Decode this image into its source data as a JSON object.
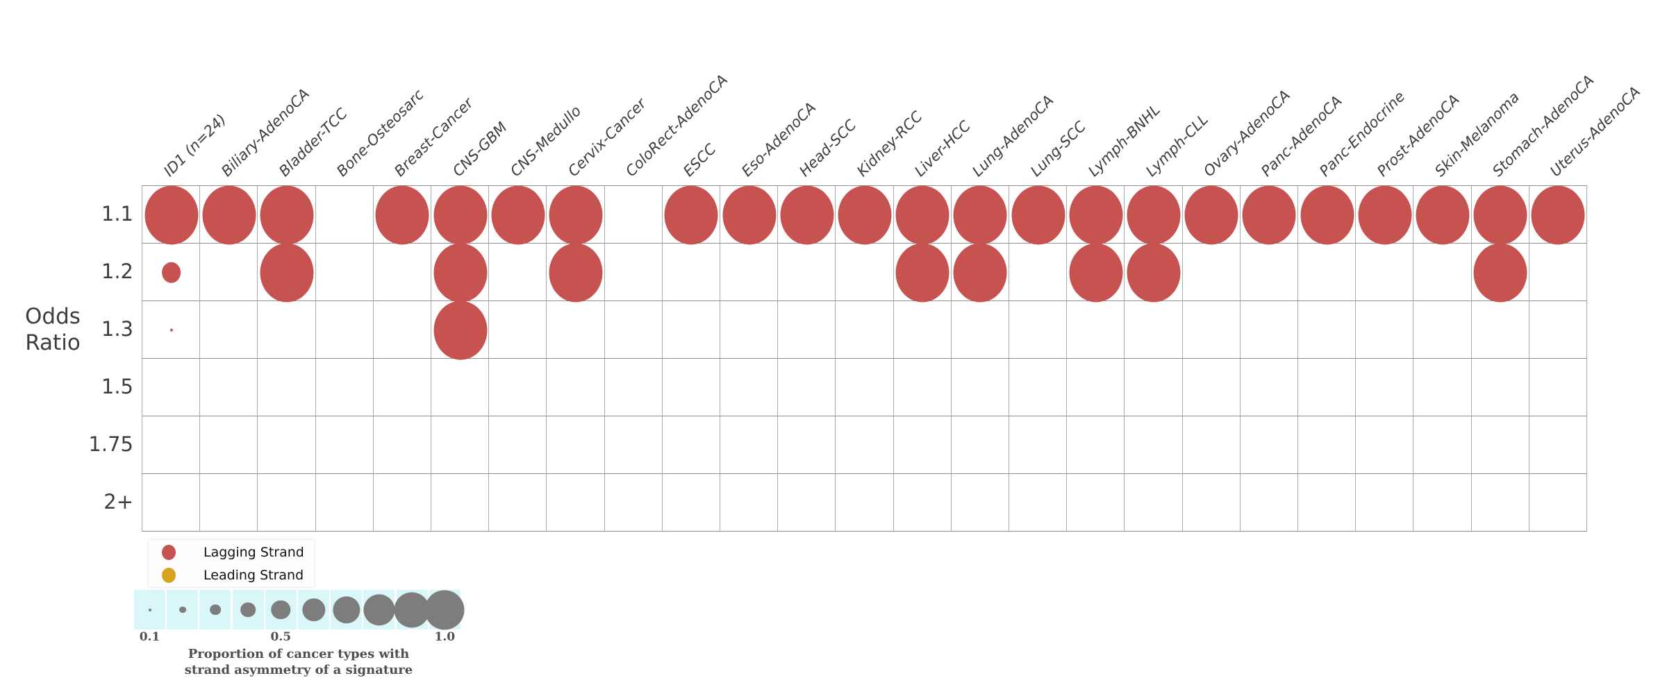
{
  "chart_data": {
    "type": "bubble",
    "title": "",
    "ylabel": "Odds\nRatio",
    "x_categories": [
      "ID1 (n=24)",
      "Biliary-AdenoCA",
      "Bladder-TCC",
      "Bone-Osteosarc",
      "Breast-Cancer",
      "CNS-GBM",
      "CNS-Medullo",
      "Cervix-Cancer",
      "ColoRect-AdenoCA",
      "ESCC",
      "Eso-AdenoCA",
      "Head-SCC",
      "Kidney-RCC",
      "Liver-HCC",
      "Lung-AdenoCA",
      "Lung-SCC",
      "Lymph-BNHL",
      "Lymph-CLL",
      "Ovary-AdenoCA",
      "Panc-AdenoCA",
      "Panc-Endocrine",
      "Prost-AdenoCA",
      "Skin-Melanoma",
      "Stomach-AdenoCA",
      "Uterus-AdenoCA"
    ],
    "y_categories": [
      "1.1",
      "1.2",
      "1.3",
      "1.5",
      "1.75",
      "2+"
    ],
    "grid": true,
    "series": [
      {
        "name": "Lagging Strand",
        "color": "#c75351",
        "points": [
          {
            "x": "ID1 (n=24)",
            "y": "1.1",
            "size": 1.0
          },
          {
            "x": "Biliary-AdenoCA",
            "y": "1.1",
            "size": 1.0
          },
          {
            "x": "Bladder-TCC",
            "y": "1.1",
            "size": 1.0
          },
          {
            "x": "Breast-Cancer",
            "y": "1.1",
            "size": 1.0
          },
          {
            "x": "CNS-GBM",
            "y": "1.1",
            "size": 1.0
          },
          {
            "x": "CNS-Medullo",
            "y": "1.1",
            "size": 1.0
          },
          {
            "x": "Cervix-Cancer",
            "y": "1.1",
            "size": 1.0
          },
          {
            "x": "ESCC",
            "y": "1.1",
            "size": 1.0
          },
          {
            "x": "Eso-AdenoCA",
            "y": "1.1",
            "size": 1.0
          },
          {
            "x": "Head-SCC",
            "y": "1.1",
            "size": 1.0
          },
          {
            "x": "Kidney-RCC",
            "y": "1.1",
            "size": 1.0
          },
          {
            "x": "Liver-HCC",
            "y": "1.1",
            "size": 1.0
          },
          {
            "x": "Lung-AdenoCA",
            "y": "1.1",
            "size": 1.0
          },
          {
            "x": "Lung-SCC",
            "y": "1.1",
            "size": 1.0
          },
          {
            "x": "Lymph-BNHL",
            "y": "1.1",
            "size": 1.0
          },
          {
            "x": "Lymph-CLL",
            "y": "1.1",
            "size": 1.0
          },
          {
            "x": "Ovary-AdenoCA",
            "y": "1.1",
            "size": 1.0
          },
          {
            "x": "Panc-AdenoCA",
            "y": "1.1",
            "size": 1.0
          },
          {
            "x": "Panc-Endocrine",
            "y": "1.1",
            "size": 1.0
          },
          {
            "x": "Prost-AdenoCA",
            "y": "1.1",
            "size": 1.0
          },
          {
            "x": "Skin-Melanoma",
            "y": "1.1",
            "size": 1.0
          },
          {
            "x": "Stomach-AdenoCA",
            "y": "1.1",
            "size": 1.0
          },
          {
            "x": "Uterus-AdenoCA",
            "y": "1.1",
            "size": 1.0
          },
          {
            "x": "ID1 (n=24)",
            "y": "1.2",
            "size": 0.36
          },
          {
            "x": "Bladder-TCC",
            "y": "1.2",
            "size": 1.0
          },
          {
            "x": "CNS-GBM",
            "y": "1.2",
            "size": 1.0
          },
          {
            "x": "Cervix-Cancer",
            "y": "1.2",
            "size": 1.0
          },
          {
            "x": "Liver-HCC",
            "y": "1.2",
            "size": 1.0
          },
          {
            "x": "Lung-AdenoCA",
            "y": "1.2",
            "size": 1.0
          },
          {
            "x": "Lymph-BNHL",
            "y": "1.2",
            "size": 1.0
          },
          {
            "x": "Lymph-CLL",
            "y": "1.2",
            "size": 1.0
          },
          {
            "x": "Stomach-AdenoCA",
            "y": "1.2",
            "size": 1.0
          },
          {
            "x": "ID1 (n=24)",
            "y": "1.3",
            "size": 0.055
          },
          {
            "x": "CNS-GBM",
            "y": "1.3",
            "size": 1.0
          }
        ]
      },
      {
        "name": "Leading Strand",
        "color": "#d8a420",
        "points": []
      }
    ],
    "size_legend": {
      "values": [
        0.1,
        0.2,
        0.3,
        0.4,
        0.5,
        0.6,
        0.7,
        0.8,
        0.9,
        1.0
      ],
      "ticks": [
        {
          "label": "0.1",
          "index": 0
        },
        {
          "label": "0.5",
          "index": 4
        },
        {
          "label": "1.0",
          "index": 9
        }
      ],
      "caption": "Proportion of cancer types with\nstrand asymmetry of a signature",
      "bubble_color": "#7d7d7d",
      "background": "#d9f6f8"
    },
    "colors": {
      "lagging": "#c75351",
      "leading": "#d8a420",
      "grid_vertical": "#a8a8a8",
      "grid_horizontal": "#8f8f8f",
      "axis_text": "#3d3d3d"
    }
  }
}
